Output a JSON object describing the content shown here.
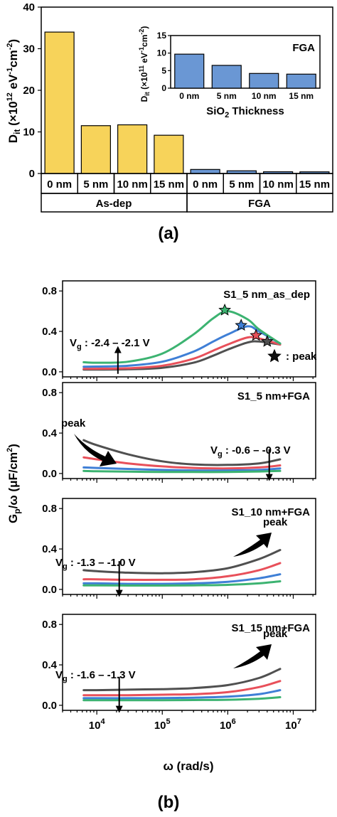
{
  "figure_labels": {
    "a": "(a)",
    "b": "(b)"
  },
  "colors": {
    "as_dep_bar": "#f7d35a",
    "fga_bar": "#6a97d4",
    "inset_bar": "#6a97d4",
    "series": [
      "#505050",
      "#e8505a",
      "#3f7fd6",
      "#3cb371"
    ]
  },
  "chart_data": [
    {
      "id": "main_bar",
      "type": "bar",
      "ylabel_main": "D",
      "ylabel_sub": "it",
      "ylabel_rest": " (×10",
      "ylabel_exp": "12",
      "ylabel_unit": " eV",
      "ylabel_exp2": "-1",
      "ylabel_unit2": "cm",
      "ylabel_exp3": "-2",
      "ylabel_close": ")",
      "ylim": [
        0,
        40
      ],
      "yticks": [
        "0",
        "10",
        "20",
        "30",
        "40"
      ],
      "categories": [
        "0 nm",
        "5 nm",
        "10 nm",
        "15 nm",
        "0 nm",
        "5 nm",
        "10 nm",
        "15 nm"
      ],
      "groups": [
        "As-dep",
        "FGA"
      ],
      "values": [
        34.0,
        11.5,
        11.7,
        9.2,
        0.97,
        0.65,
        0.42,
        0.4
      ]
    },
    {
      "id": "inset_bar",
      "type": "bar",
      "title": "FGA",
      "xlabel_main": "SiO",
      "xlabel_sub": "2",
      "xlabel_rest": " Thickness",
      "ylabel_main": "D",
      "ylabel_sub": "it",
      "ylabel_rest": " (×10",
      "ylabel_exp": "11",
      "ylabel_unit": " eV",
      "ylabel_exp2": "-1",
      "ylabel_unit2": "cm",
      "ylabel_exp3": "-2",
      "ylabel_close": ")",
      "ylim": [
        0,
        15
      ],
      "yticks": [
        "0",
        "5",
        "10",
        "15"
      ],
      "categories": [
        "0 nm",
        "5 nm",
        "10 nm",
        "15 nm"
      ],
      "values": [
        9.7,
        6.5,
        4.2,
        4.0
      ]
    },
    {
      "id": "panel1",
      "type": "line",
      "title": "S1_5 nm_as_dep",
      "vg_main": "V",
      "vg_sub": "g",
      "vg_text": " : -2.4 – -2.1 V",
      "peak_legend": ": peak",
      "ylim": [
        -0.05,
        0.9
      ],
      "yticks": [
        "0.0",
        "0.4",
        "0.8"
      ],
      "x": [
        6300.0,
        10000.0,
        30000.0,
        100000.0,
        300000.0,
        600000.0,
        1000000.0,
        2000000.0,
        3000000.0,
        6300000.0
      ],
      "series": [
        {
          "values": [
            0.022,
            0.022,
            0.025,
            0.04,
            0.09,
            0.16,
            0.22,
            0.29,
            0.3,
            0.27
          ],
          "peak": {
            "x": 4000000.0,
            "y": 0.3
          }
        },
        {
          "values": [
            0.03,
            0.03,
            0.035,
            0.06,
            0.13,
            0.21,
            0.27,
            0.34,
            0.33,
            0.27
          ],
          "peak": {
            "x": 2700000.0,
            "y": 0.36
          }
        },
        {
          "values": [
            0.05,
            0.052,
            0.06,
            0.1,
            0.2,
            0.3,
            0.37,
            0.45,
            0.4,
            0.28
          ],
          "peak": {
            "x": 1600000.0,
            "y": 0.46
          }
        },
        {
          "values": [
            0.095,
            0.09,
            0.1,
            0.18,
            0.37,
            0.53,
            0.6,
            0.52,
            0.42,
            0.28
          ],
          "peak": {
            "x": 900000.0,
            "y": 0.61
          }
        }
      ]
    },
    {
      "id": "panel2",
      "type": "line",
      "title": "S1_5 nm+FGA",
      "vg_main": "V",
      "vg_sub": "g",
      "vg_text": " : -0.6 – -0.3 V",
      "peak_label": "peak",
      "ylim": [
        -0.05,
        0.9
      ],
      "yticks": [
        "0.0",
        "0.4",
        "0.8"
      ],
      "x": [
        6300.0,
        10000.0,
        30000.0,
        100000.0,
        300000.0,
        1000000.0,
        3000000.0,
        6300000.0
      ],
      "series": [
        {
          "values": [
            0.33,
            0.28,
            0.19,
            0.12,
            0.09,
            0.085,
            0.1,
            0.14
          ]
        },
        {
          "values": [
            0.16,
            0.14,
            0.1,
            0.07,
            0.055,
            0.05,
            0.06,
            0.08
          ]
        },
        {
          "values": [
            0.06,
            0.055,
            0.045,
            0.035,
            0.03,
            0.03,
            0.035,
            0.05
          ]
        },
        {
          "values": [
            0.025,
            0.022,
            0.018,
            0.015,
            0.015,
            0.015,
            0.02,
            0.025
          ]
        }
      ]
    },
    {
      "id": "panel3",
      "type": "line",
      "title": "S1_10 nm+FGA",
      "vg_main": "V",
      "vg_sub": "g",
      "vg_text": " : -1.3 – -1.0 V",
      "peak_label": "peak",
      "ylim": [
        -0.05,
        0.9
      ],
      "yticks": [
        "0.0",
        "0.4",
        "0.8"
      ],
      "x": [
        6300.0,
        10000.0,
        30000.0,
        100000.0,
        300000.0,
        1000000.0,
        3000000.0,
        6300000.0
      ],
      "series": [
        {
          "values": [
            0.19,
            0.18,
            0.165,
            0.16,
            0.17,
            0.21,
            0.3,
            0.39
          ]
        },
        {
          "values": [
            0.1,
            0.1,
            0.095,
            0.095,
            0.1,
            0.13,
            0.19,
            0.26
          ]
        },
        {
          "values": [
            0.06,
            0.06,
            0.055,
            0.055,
            0.06,
            0.075,
            0.11,
            0.15
          ]
        },
        {
          "values": [
            0.04,
            0.04,
            0.038,
            0.038,
            0.04,
            0.045,
            0.06,
            0.08
          ]
        }
      ]
    },
    {
      "id": "panel4",
      "type": "line",
      "title": "S1_15 nm+FGA",
      "vg_main": "V",
      "vg_sub": "g",
      "vg_text": " : -1.6 – -1.3 V",
      "peak_label": "peak",
      "ylim": [
        -0.05,
        0.9
      ],
      "yticks": [
        "0.0",
        "0.4",
        "0.8"
      ],
      "x": [
        6300.0,
        10000.0,
        30000.0,
        100000.0,
        300000.0,
        1000000.0,
        3000000.0,
        6300000.0
      ],
      "series": [
        {
          "values": [
            0.15,
            0.15,
            0.155,
            0.16,
            0.17,
            0.2,
            0.27,
            0.36
          ]
        },
        {
          "values": [
            0.1,
            0.1,
            0.1,
            0.105,
            0.11,
            0.13,
            0.18,
            0.24
          ]
        },
        {
          "values": [
            0.07,
            0.07,
            0.07,
            0.072,
            0.075,
            0.085,
            0.11,
            0.15
          ]
        },
        {
          "values": [
            0.05,
            0.05,
            0.05,
            0.05,
            0.052,
            0.055,
            0.065,
            0.08
          ]
        }
      ]
    }
  ],
  "shared_axes": {
    "ylabel_main": "G",
    "ylabel_sub": "p",
    "ylabel_rest": "/ω (μF/cm",
    "ylabel_exp": "2",
    "ylabel_close": ")",
    "xlabel": "ω (rad/s)",
    "x_scale": "log",
    "xlim": [
      3000.0,
      22000000.0
    ],
    "xticks": [
      {
        "base": "10",
        "exp": "4",
        "value": 10000.0
      },
      {
        "base": "10",
        "exp": "5",
        "value": 100000.0
      },
      {
        "base": "10",
        "exp": "6",
        "value": 1000000.0
      },
      {
        "base": "10",
        "exp": "7",
        "value": 10000000.0
      }
    ]
  }
}
